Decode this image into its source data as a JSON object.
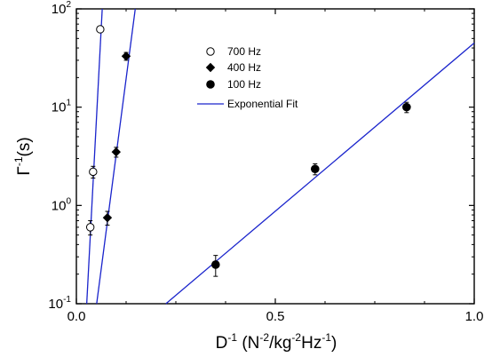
{
  "chart_data": {
    "type": "scatter",
    "xlim": [
      0,
      1.0
    ],
    "ylim": [
      0.1,
      100
    ],
    "yscale": "log",
    "x_ticks": [
      {
        "value": 0.0,
        "label": "0.0"
      },
      {
        "value": 0.5,
        "label": "0.5"
      },
      {
        "value": 1.0,
        "label": "1.0"
      }
    ],
    "y_ticks": [
      {
        "value": 0.1,
        "base": "10",
        "exp": "-1"
      },
      {
        "value": 1,
        "base": "10",
        "exp": "0"
      },
      {
        "value": 10,
        "base": "10",
        "exp": "1"
      },
      {
        "value": 100,
        "base": "10",
        "exp": "2"
      }
    ],
    "xlabel": {
      "base": "D",
      "sup1": "-1",
      "mid1": " (N",
      "sup2": "-2",
      "mid2": "/kg",
      "sup3": "-2",
      "mid3": "Hz",
      "sup4": "-1",
      "end": ")"
    },
    "ylabel": {
      "base": "Γ",
      "sup": "-1",
      "end": "(s)"
    },
    "grid": false,
    "legend_position": "top-center",
    "series": [
      {
        "name": "700 Hz",
        "marker": "open-circle",
        "points": [
          {
            "x": 0.035,
            "y": 0.6,
            "err": 0.1
          },
          {
            "x": 0.042,
            "y": 2.2,
            "err": 0.3
          },
          {
            "x": 0.06,
            "y": 62,
            "err": 0
          }
        ],
        "fit": {
          "x": [
            0.026,
            0.065
          ],
          "y": [
            0.1,
            100
          ]
        }
      },
      {
        "name": "400 Hz",
        "marker": "filled-diamond",
        "points": [
          {
            "x": 0.078,
            "y": 0.75,
            "err": 0.12
          },
          {
            "x": 0.1,
            "y": 3.5,
            "err": 0.4
          },
          {
            "x": 0.125,
            "y": 33,
            "err": 3
          }
        ],
        "fit": {
          "x": [
            0.051,
            0.148
          ],
          "y": [
            0.1,
            100
          ]
        }
      },
      {
        "name": "100 Hz",
        "marker": "filled-circle",
        "points": [
          {
            "x": 0.35,
            "y": 0.25,
            "err": 0.06
          },
          {
            "x": 0.6,
            "y": 2.35,
            "err": 0.3
          },
          {
            "x": 0.83,
            "y": 10,
            "err": 1.2
          }
        ],
        "fit": {
          "x": [
            0.225,
            1.0
          ],
          "y": [
            0.1,
            45
          ]
        }
      }
    ],
    "fit_legend": "Exponential Fit",
    "colors": {
      "fit": "#1a24cc",
      "marker": "#000000"
    }
  }
}
